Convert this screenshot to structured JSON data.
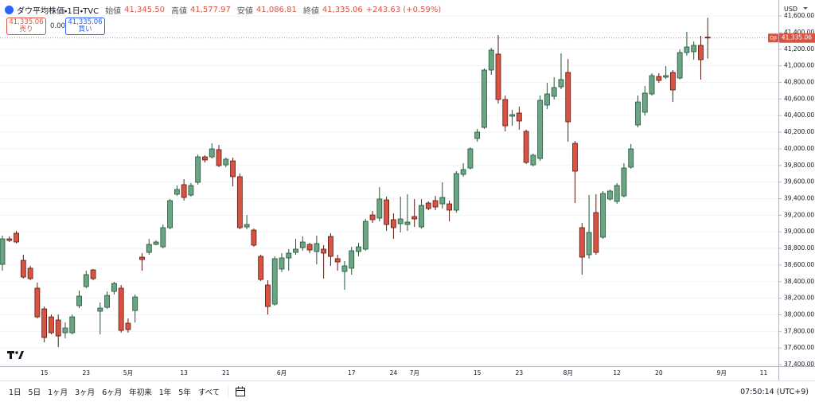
{
  "header": {
    "symbol_title": "ダウ平均株価・1日・TVC",
    "open_label": "始値",
    "open": "41,345.50",
    "high_label": "高値",
    "high": "41,577.97",
    "low_label": "安値",
    "low": "41,086.81",
    "close_label": "終値",
    "close": "41,335.06",
    "change": "+243.63 (+0.59%)"
  },
  "trade": {
    "sell_price": "41,335.06",
    "sell_label": "売り",
    "spread": "0.00",
    "buy_price": "41,335.06",
    "buy_label": "買い"
  },
  "currency": "USD",
  "toolbar": {
    "ranges": [
      "1日",
      "5日",
      "1ヶ月",
      "3ヶ月",
      "6ヶ月",
      "年初来",
      "1年",
      "5年",
      "すべて"
    ],
    "time": "07:50:14 (UTC+9)"
  },
  "chart_data": {
    "type": "candlestick",
    "categories": [
      null,
      null,
      null,
      null,
      null,
      null,
      "15",
      null,
      null,
      null,
      null,
      null,
      "23",
      null,
      null,
      null,
      null,
      null,
      "5月",
      null,
      null,
      null,
      null,
      null,
      null,
      null,
      "13",
      null,
      null,
      null,
      null,
      null,
      "21",
      null,
      null,
      null,
      null,
      null,
      null,
      null,
      "6月",
      null,
      null,
      null,
      null,
      null,
      null,
      null,
      null,
      null,
      "17",
      null,
      null,
      null,
      null,
      null,
      "24",
      null,
      null,
      "7月",
      null,
      null,
      null,
      null,
      null,
      null,
      null,
      null,
      "15",
      null,
      null,
      null,
      null,
      null,
      "23",
      null,
      null,
      null,
      null,
      null,
      null,
      "8月",
      null,
      null,
      null,
      null,
      null,
      null,
      "12",
      null,
      null,
      null,
      null,
      null,
      "20",
      null,
      null,
      null,
      null,
      null,
      null,
      null,
      null,
      "9月",
      null,
      null,
      null,
      null,
      null,
      "11",
      null,
      null
    ],
    "open": [
      38608,
      38915,
      38983,
      38656,
      38561,
      38321,
      38071,
      37975,
      37937,
      37784,
      37784,
      38110,
      38340,
      38541,
      38043,
      38090,
      38282,
      38321,
      37899,
      38052,
      38695,
      38752,
      38848,
      38819,
      39050,
      39453,
      39568,
      39443,
      39596,
      39903,
      39903,
      39990,
      39807,
      39855,
      39664,
      39059,
      39021,
      38704,
      38359,
      38129,
      38551,
      38685,
      38752,
      38810,
      38848,
      38762,
      38791,
      38944,
      38676,
      38522,
      38561,
      38762,
      38791,
      39203,
      39165,
      39385,
      39146,
      39098,
      39088,
      39184,
      39059,
      39347,
      39376,
      39337,
      39337,
      39261,
      39692,
      39769,
      40124,
      40258,
      40949,
      41141,
      40594,
      40393,
      40431,
      40210,
      39807,
      39884,
      40527,
      40632,
      40747,
      40920,
      40066,
      39050,
      38724,
      39232,
      38935,
      39395,
      39366,
      39433,
      39779,
      40287,
      40441,
      40661,
      40872,
      40863,
      40920,
      40853,
      41160,
      41170,
      41246,
      41345.5,
      null,
      null,
      null,
      null,
      null,
      null,
      null,
      null,
      null,
      null
    ],
    "high": [
      38954,
      38944,
      39011,
      38724,
      38589,
      38388,
      38100,
      38004,
      38004,
      37908,
      38004,
      38292,
      38532,
      38551,
      38148,
      38282,
      38397,
      38359,
      37956,
      38244,
      38743,
      38915,
      38896,
      39088,
      39395,
      39558,
      39635,
      39587,
      39932,
      39923,
      40066,
      40047,
      39894,
      39894,
      39702,
      39203,
      39040,
      38724,
      38417,
      38704,
      38743,
      38791,
      38915,
      38944,
      38867,
      38954,
      38839,
      38983,
      38724,
      38647,
      38819,
      38867,
      39155,
      39251,
      39539,
      39424,
      39222,
      39424,
      39453,
      39395,
      39395,
      39366,
      39433,
      39596,
      39376,
      39731,
      39827,
      40018,
      40239,
      40968,
      41217,
      41371,
      40642,
      40469,
      40508,
      40230,
      39942,
      40642,
      40795,
      40863,
      41150,
      41083,
      40095,
      39107,
      39443,
      39453,
      39491,
      39510,
      39587,
      39827,
      40057,
      40642,
      40757,
      40911,
      40911,
      40997,
      40949,
      41198,
      41409,
      41294,
      41361,
      41577.97,
      null,
      null,
      null,
      null,
      null,
      null,
      null,
      null,
      null,
      null
    ],
    "low": [
      38532,
      38877,
      38858,
      38436,
      38417,
      37956,
      37668,
      37764,
      37611,
      37716,
      37764,
      38081,
      38321,
      38417,
      37764,
      38071,
      38244,
      37784,
      37784,
      37908,
      38532,
      38724,
      38839,
      38800,
      39031,
      39433,
      39376,
      39424,
      39568,
      39836,
      39884,
      39779,
      39779,
      39548,
      39031,
      39031,
      38819,
      38407,
      38004,
      38110,
      38513,
      38532,
      38724,
      38772,
      38743,
      38608,
      38436,
      38589,
      38532,
      38302,
      38484,
      38704,
      38772,
      39107,
      39126,
      39011,
      38915,
      38992,
      39011,
      39059,
      39040,
      39261,
      39261,
      39280,
      39126,
      39232,
      39664,
      39750,
      40086,
      40239,
      40891,
      40546,
      40210,
      40277,
      40230,
      39817,
      39788,
      39855,
      40479,
      40594,
      40719,
      40086,
      39347,
      38484,
      38676,
      38724,
      38915,
      39376,
      39337,
      39414,
      39759,
      40258,
      40402,
      40642,
      40795,
      40843,
      40565,
      40834,
      41122,
      41074,
      40834,
      41086.81,
      null,
      null,
      null,
      null,
      null,
      null,
      null,
      null,
      null,
      null
    ],
    "close": [
      38915,
      38896,
      38877,
      38455,
      38436,
      37975,
      37726,
      37784,
      37745,
      37841,
      37975,
      38225,
      38484,
      38436,
      38081,
      38234,
      38378,
      37812,
      37822,
      38215,
      38666,
      38848,
      38877,
      39050,
      39376,
      39510,
      39414,
      39558,
      39903,
      39865,
      39999,
      39798,
      39875,
      39664,
      39050,
      39088,
      38839,
      38426,
      38100,
      38676,
      38685,
      38743,
      38791,
      38877,
      38781,
      38858,
      38743,
      38704,
      38637,
      38589,
      38772,
      38819,
      39126,
      39146,
      39395,
      39088,
      39050,
      39155,
      39117,
      39155,
      39318,
      39280,
      39299,
      39414,
      39261,
      39702,
      39750,
      39999,
      40201,
      40949,
      41189,
      40594,
      40277,
      40412,
      40335,
      39836,
      39923,
      40584,
      40661,
      40738,
      40834,
      40325,
      39731,
      38695,
      38992,
      38752,
      39462,
      39491,
      39558,
      39769,
      39999,
      40565,
      40671,
      40882,
      40824,
      40882,
      40709,
      41160,
      41227,
      41246,
      41074,
      41335.06,
      null,
      null,
      null,
      null,
      null,
      null,
      null,
      null,
      null,
      null
    ],
    "up_color": "#6ba583",
    "up_border": "#225437",
    "down_color": "#d75442",
    "down_border": "#5b1a13",
    "ylim": [
      37381,
      41793
    ],
    "yticks": [
      {
        "value": 37400,
        "label": "37,400.00"
      },
      {
        "value": 37600,
        "label": "37,600.00"
      },
      {
        "value": 37800,
        "label": "37,800.00"
      },
      {
        "value": 38000,
        "label": "38,000.00"
      },
      {
        "value": 38200,
        "label": "38,200.00"
      },
      {
        "value": 38400,
        "label": "38,400.00"
      },
      {
        "value": 38600,
        "label": "38,600.00"
      },
      {
        "value": 38800,
        "label": "38,800.00"
      },
      {
        "value": 39000,
        "label": "39,000.00"
      },
      {
        "value": 39200,
        "label": "39,200.00"
      },
      {
        "value": 39400,
        "label": "39,400.00"
      },
      {
        "value": 39600,
        "label": "39,600.00"
      },
      {
        "value": 39800,
        "label": "39,800.00"
      },
      {
        "value": 40000,
        "label": "40,000.00"
      },
      {
        "value": 40200,
        "label": "40,200.00"
      },
      {
        "value": 40400,
        "label": "40,400.00"
      },
      {
        "value": 40600,
        "label": "40,600.00"
      },
      {
        "value": 40800,
        "label": "40,800.00"
      },
      {
        "value": 41000,
        "label": "41,000.00"
      },
      {
        "value": 41200,
        "label": "41,200.00"
      },
      {
        "value": 41400,
        "label": "41,400.00"
      },
      {
        "value": 41600,
        "label": "41,600.00"
      }
    ],
    "grid": true,
    "price_line": {
      "symbol": "DJI",
      "value": 41335.06,
      "label": "41,335.06",
      "color": "#d75442"
    }
  }
}
